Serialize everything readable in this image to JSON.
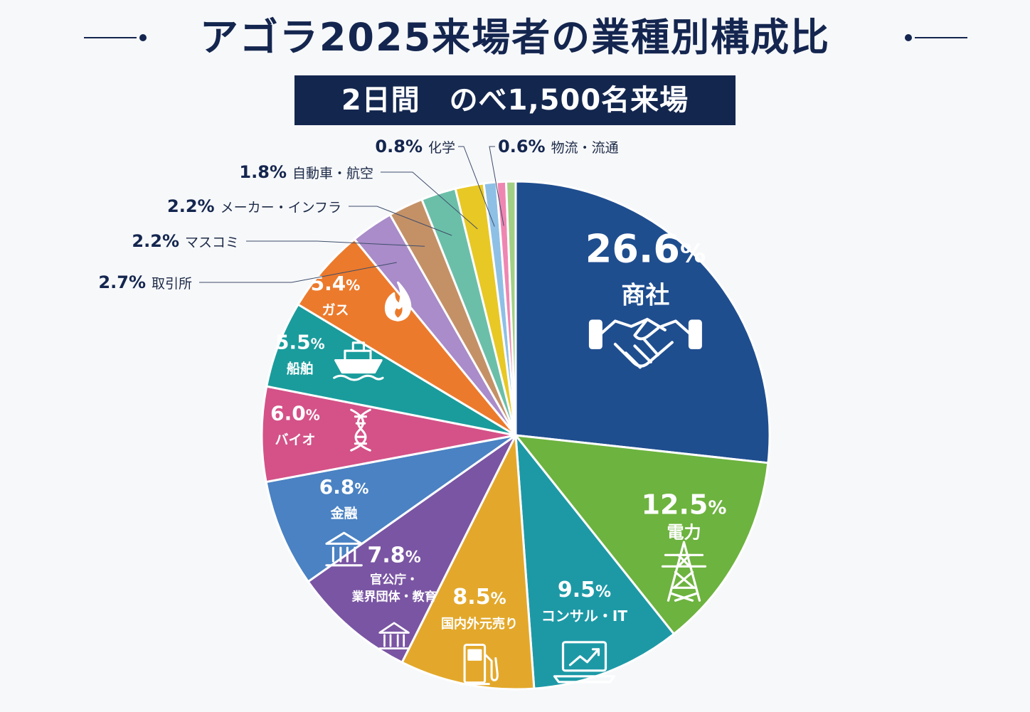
{
  "title": "アゴラ2025来場者の業種別構成比",
  "subtitle": "2日間　のべ1,500名来場",
  "chart_data": {
    "type": "pie",
    "title": "アゴラ2025来場者の業種別構成比",
    "subtitle": "2日間　のべ1,500名来場",
    "start": "12 o'clock, clockwise",
    "slices": [
      {
        "label": "商社",
        "value": 26.6,
        "color": "#1f4e8f",
        "icon": "handshake-icon"
      },
      {
        "label": "電力",
        "value": 12.5,
        "color": "#6db33f",
        "icon": "power-tower-icon"
      },
      {
        "label": "コンサル・IT",
        "value": 9.5,
        "color": "#1d99a6",
        "icon": "laptop-chart-icon"
      },
      {
        "label": "国内外元売り",
        "value": 8.5,
        "color": "#e3a82b",
        "icon": "fuel-pump-icon"
      },
      {
        "label": "官公庁・業界団体・教育",
        "value": 7.8,
        "color": "#7a55a3",
        "icon": "government-building-icon"
      },
      {
        "label": "金融",
        "value": 6.8,
        "color": "#4a82c3",
        "icon": "bank-icon"
      },
      {
        "label": "バイオ",
        "value": 6.0,
        "color": "#d45288",
        "icon": "dna-icon"
      },
      {
        "label": "船舶",
        "value": 5.5,
        "color": "#1a9c9c",
        "icon": "ship-icon"
      },
      {
        "label": "ガス",
        "value": 5.4,
        "color": "#ec7a2c",
        "icon": "flame-icon"
      },
      {
        "label": "取引所",
        "value": 2.7,
        "color": "#a98cc9",
        "icon": ""
      },
      {
        "label": "マスコミ",
        "value": 2.2,
        "color": "#c49167",
        "icon": ""
      },
      {
        "label": "メーカー・インフラ",
        "value": 2.2,
        "color": "#6bbfa8",
        "icon": ""
      },
      {
        "label": "自動車・航空",
        "value": 1.8,
        "color": "#e8c825",
        "icon": ""
      },
      {
        "label": "化学",
        "value": 0.8,
        "color": "#8ec0e6",
        "icon": ""
      },
      {
        "label": "物流・流通",
        "value": 0.6,
        "color": "#ef86b2",
        "icon": ""
      },
      {
        "label": "",
        "value": 0.6,
        "color": "#a2cf86",
        "icon": ""
      }
    ]
  }
}
